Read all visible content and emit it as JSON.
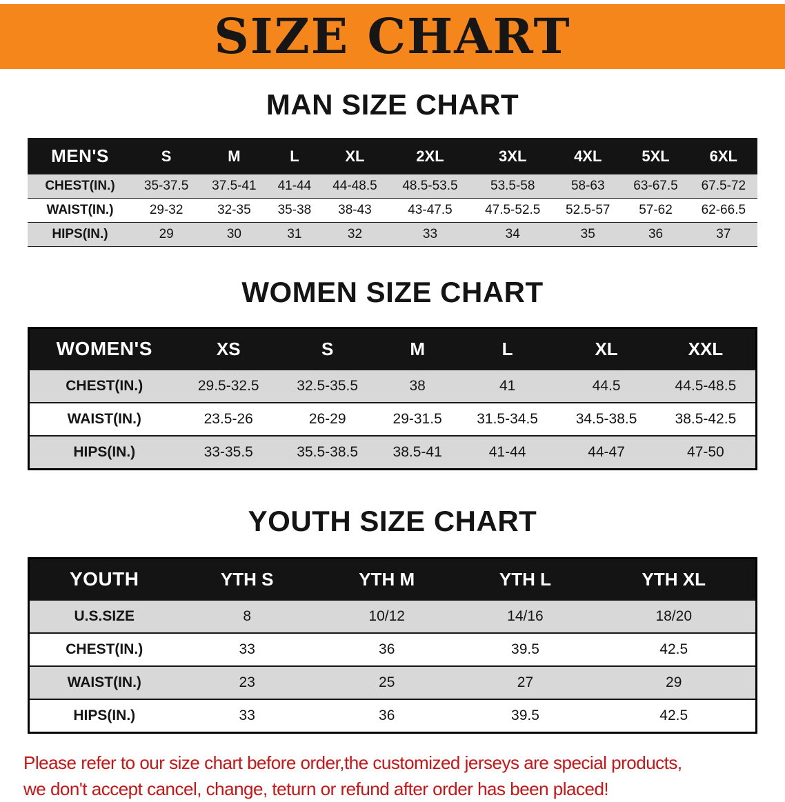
{
  "banner": {
    "title": "SIZE CHART"
  },
  "colors": {
    "banner_bg": "#F5861B",
    "header_bg": "#141414",
    "row_gray": "#D8D8D8",
    "disclaimer": "#CC1414"
  },
  "sections": [
    {
      "id": "men",
      "heading": "MAN SIZE CHART",
      "table": {
        "header": [
          "MEN'S",
          "S",
          "M",
          "L",
          "XL",
          "2XL",
          "3XL",
          "4XL",
          "5XL",
          "6XL"
        ],
        "rows": [
          [
            "CHEST(IN.)",
            "35-37.5",
            "37.5-41",
            "41-44",
            "44-48.5",
            "48.5-53.5",
            "53.5-58",
            "58-63",
            "63-67.5",
            "67.5-72"
          ],
          [
            "WAIST(IN.)",
            "29-32",
            "32-35",
            "35-38",
            "38-43",
            "43-47.5",
            "47.5-52.5",
            "52.5-57",
            "57-62",
            "62-66.5"
          ],
          [
            "HIPS(IN.)",
            "29",
            "30",
            "31",
            "32",
            "33",
            "34",
            "35",
            "36",
            "37"
          ]
        ]
      }
    },
    {
      "id": "women",
      "heading": "WOMEN SIZE CHART",
      "table": {
        "header": [
          "WOMEN'S",
          "XS",
          "S",
          "M",
          "L",
          "XL",
          "XXL"
        ],
        "rows": [
          [
            "CHEST(IN.)",
            "29.5-32.5",
            "32.5-35.5",
            "38",
            "41",
            "44.5",
            "44.5-48.5"
          ],
          [
            "WAIST(IN.)",
            "23.5-26",
            "26-29",
            "29-31.5",
            "31.5-34.5",
            "34.5-38.5",
            "38.5-42.5"
          ],
          [
            "HIPS(IN.)",
            "33-35.5",
            "35.5-38.5",
            "38.5-41",
            "41-44",
            "44-47",
            "47-50"
          ]
        ]
      }
    },
    {
      "id": "youth",
      "heading": "YOUTH SIZE CHART",
      "table": {
        "header": [
          "YOUTH",
          "YTH S",
          "YTH M",
          "YTH L",
          "YTH XL"
        ],
        "rows": [
          [
            "U.S.SIZE",
            "8",
            "10/12",
            "14/16",
            "18/20"
          ],
          [
            "CHEST(IN.)",
            "33",
            "36",
            "39.5",
            "42.5"
          ],
          [
            "WAIST(IN.)",
            "23",
            "25",
            "27",
            "29"
          ],
          [
            "HIPS(IN.)",
            "33",
            "36",
            "39.5",
            "42.5"
          ]
        ]
      }
    }
  ],
  "disclaimer": {
    "lines": [
      "Please refer to our size chart before order,the customized jerseys are special products,",
      "we don't accept cancel, change, teturn or refund after order has been placed!"
    ]
  }
}
